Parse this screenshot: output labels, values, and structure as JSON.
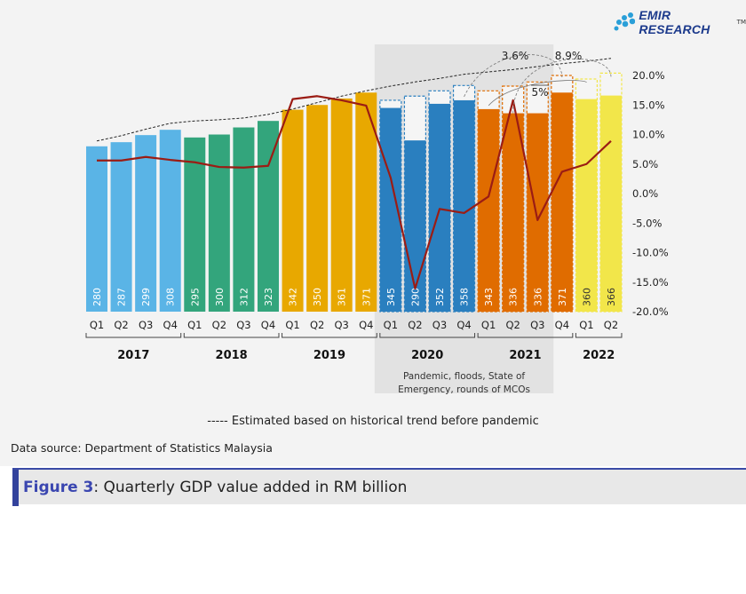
{
  "logo": {
    "text": "EMIR RESEARCH",
    "tm": "TM"
  },
  "chart_data": {
    "type": "bar",
    "title": "",
    "categories": [
      "Q1",
      "Q2",
      "Q3",
      "Q4",
      "Q1",
      "Q2",
      "Q3",
      "Q4",
      "Q1",
      "Q2",
      "Q3",
      "Q4",
      "Q1",
      "Q2",
      "Q3",
      "Q4",
      "Q1",
      "Q2",
      "Q3",
      "Q4",
      "Q1",
      "Q2"
    ],
    "years": [
      {
        "label": "2017",
        "quarters": 4,
        "color": "#5ab4e6"
      },
      {
        "label": "2018",
        "quarters": 4,
        "color": "#33a57c"
      },
      {
        "label": "2019",
        "quarters": 4,
        "color": "#e8a800"
      },
      {
        "label": "2020",
        "quarters": 4,
        "color": "#2a7fbf"
      },
      {
        "label": "2021",
        "quarters": 4,
        "color": "#e06c00"
      },
      {
        "label": "2022",
        "quarters": 2,
        "color": "#f2e64a"
      }
    ],
    "series": [
      {
        "type": "bar",
        "axis": "left",
        "values": [
          280,
          287,
          299,
          308,
          295,
          300,
          312,
          323,
          342,
          350,
          361,
          371,
          345,
          290,
          352,
          358,
          343,
          336,
          336,
          371,
          360,
          366
        ]
      },
      {
        "type": "bar-outline-dashed",
        "axis": "left",
        "values": [
          null,
          null,
          null,
          null,
          null,
          null,
          null,
          null,
          null,
          null,
          null,
          null,
          358,
          365,
          374,
          383,
          374,
          382,
          389,
          400,
          394,
          404
        ]
      },
      {
        "type": "line",
        "axis": "right",
        "color": "#9b1c14",
        "values": [
          5.6,
          5.6,
          6.2,
          5.7,
          5.3,
          4.5,
          4.4,
          4.7,
          16.0,
          16.5,
          15.8,
          14.9,
          2.7,
          -16.1,
          -2.6,
          -3.3,
          -0.5,
          15.8,
          -4.5,
          3.7,
          5.0,
          8.9
        ]
      }
    ],
    "left_ylim": [
      0,
      400
    ],
    "right_ylim": [
      -20,
      20
    ],
    "right_ticks": [
      "20.0%",
      "15.0%",
      "10.0%",
      "5.0%",
      "0.0%",
      "-5.0%",
      "-10.0%",
      "-15.0%",
      "-20.0%"
    ],
    "shaded_region_note": "Pandemic, floods, State of Emergency, rounds of MCOs",
    "annotations": [
      "3.6%",
      "8.9%",
      "5%"
    ],
    "grid": false
  },
  "legend": {
    "text": "----- Estimated based on historical trend before pandemic"
  },
  "source": "Data source: Department of Statistics Malaysia",
  "caption": {
    "label": "Figure 3",
    "text": ": Quarterly GDP value added in RM billion"
  }
}
